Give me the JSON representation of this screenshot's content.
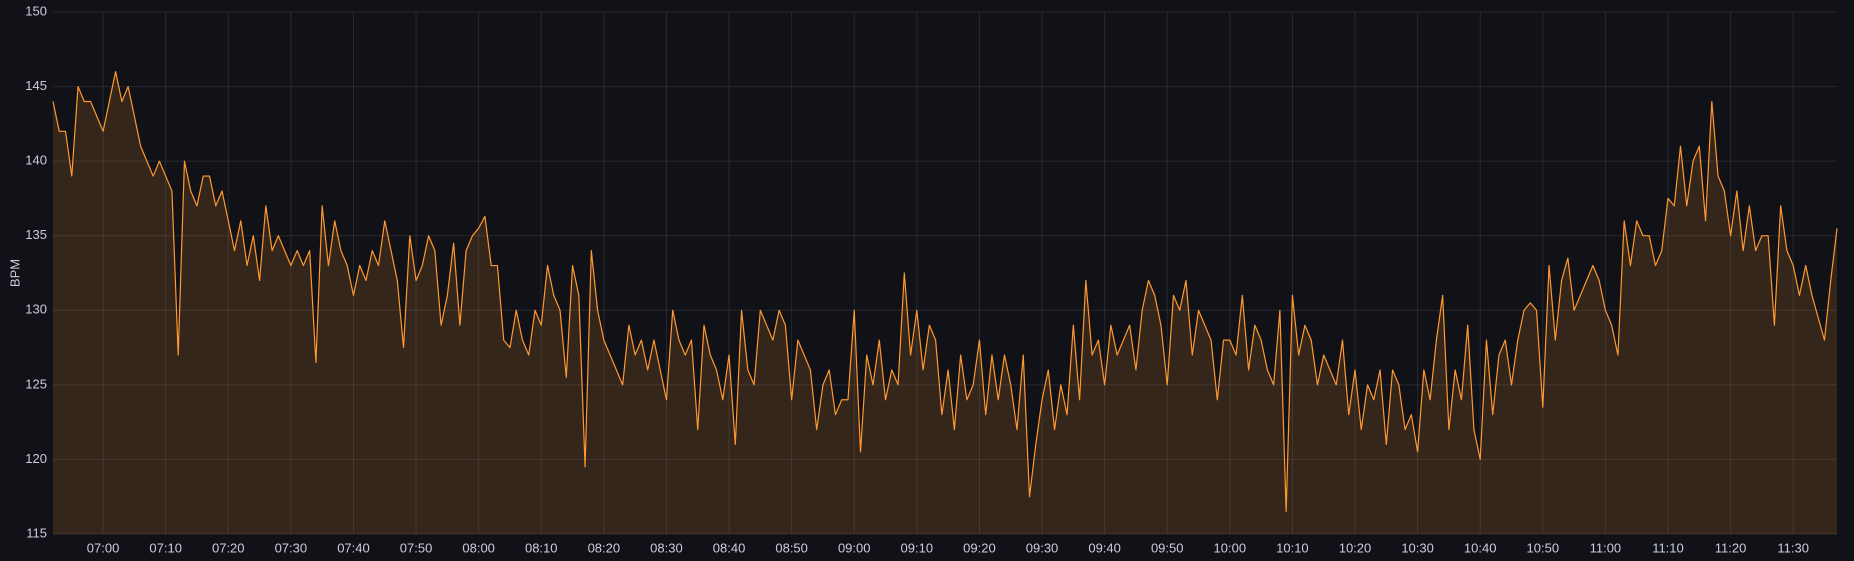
{
  "chart_data": {
    "type": "line",
    "ylabel": "BPM",
    "grid": true,
    "fill": true,
    "xlim": [
      "06:52",
      "11:37"
    ],
    "ylim": [
      115,
      150
    ],
    "xticks": [
      "07:00",
      "07:10",
      "07:20",
      "07:30",
      "07:40",
      "07:50",
      "08:00",
      "08:10",
      "08:20",
      "08:30",
      "08:40",
      "08:50",
      "09:00",
      "09:10",
      "09:20",
      "09:30",
      "09:40",
      "09:50",
      "10:00",
      "10:10",
      "10:20",
      "10:30",
      "10:40",
      "10:50",
      "11:00",
      "11:10",
      "11:20",
      "11:30"
    ],
    "yticks": [
      115,
      120,
      125,
      130,
      135,
      140,
      145,
      150
    ],
    "x": [
      "06:52",
      "06:53",
      "06:54",
      "06:55",
      "06:56",
      "06:57",
      "06:58",
      "06:59",
      "07:00",
      "07:01",
      "07:02",
      "07:03",
      "07:04",
      "07:05",
      "07:06",
      "07:07",
      "07:08",
      "07:09",
      "07:10",
      "07:11",
      "07:12",
      "07:13",
      "07:14",
      "07:15",
      "07:16",
      "07:17",
      "07:18",
      "07:19",
      "07:20",
      "07:21",
      "07:22",
      "07:23",
      "07:24",
      "07:25",
      "07:26",
      "07:27",
      "07:28",
      "07:29",
      "07:30",
      "07:31",
      "07:32",
      "07:33",
      "07:34",
      "07:35",
      "07:36",
      "07:37",
      "07:38",
      "07:39",
      "07:40",
      "07:41",
      "07:42",
      "07:43",
      "07:44",
      "07:45",
      "07:46",
      "07:47",
      "07:48",
      "07:49",
      "07:50",
      "07:51",
      "07:52",
      "07:53",
      "07:54",
      "07:55",
      "07:56",
      "07:57",
      "07:58",
      "07:59",
      "08:00",
      "08:01",
      "08:02",
      "08:03",
      "08:04",
      "08:05",
      "08:06",
      "08:07",
      "08:08",
      "08:09",
      "08:10",
      "08:11",
      "08:12",
      "08:13",
      "08:14",
      "08:15",
      "08:16",
      "08:17",
      "08:18",
      "08:19",
      "08:20",
      "08:21",
      "08:22",
      "08:23",
      "08:24",
      "08:25",
      "08:26",
      "08:27",
      "08:28",
      "08:29",
      "08:30",
      "08:31",
      "08:32",
      "08:33",
      "08:34",
      "08:35",
      "08:36",
      "08:37",
      "08:38",
      "08:39",
      "08:40",
      "08:41",
      "08:42",
      "08:43",
      "08:44",
      "08:45",
      "08:46",
      "08:47",
      "08:48",
      "08:49",
      "08:50",
      "08:51",
      "08:52",
      "08:53",
      "08:54",
      "08:55",
      "08:56",
      "08:57",
      "08:58",
      "08:59",
      "09:00",
      "09:01",
      "09:02",
      "09:03",
      "09:04",
      "09:05",
      "09:06",
      "09:07",
      "09:08",
      "09:09",
      "09:10",
      "09:11",
      "09:12",
      "09:13",
      "09:14",
      "09:15",
      "09:16",
      "09:17",
      "09:18",
      "09:19",
      "09:20",
      "09:21",
      "09:22",
      "09:23",
      "09:24",
      "09:25",
      "09:26",
      "09:27",
      "09:28",
      "09:29",
      "09:30",
      "09:31",
      "09:32",
      "09:33",
      "09:34",
      "09:35",
      "09:36",
      "09:37",
      "09:38",
      "09:39",
      "09:40",
      "09:41",
      "09:42",
      "09:43",
      "09:44",
      "09:45",
      "09:46",
      "09:47",
      "09:48",
      "09:49",
      "09:50",
      "09:51",
      "09:52",
      "09:53",
      "09:54",
      "09:55",
      "09:56",
      "09:57",
      "09:58",
      "09:59",
      "10:00",
      "10:01",
      "10:02",
      "10:03",
      "10:04",
      "10:05",
      "10:06",
      "10:07",
      "10:08",
      "10:09",
      "10:10",
      "10:11",
      "10:12",
      "10:13",
      "10:14",
      "10:15",
      "10:16",
      "10:17",
      "10:18",
      "10:19",
      "10:20",
      "10:21",
      "10:22",
      "10:23",
      "10:24",
      "10:25",
      "10:26",
      "10:27",
      "10:28",
      "10:29",
      "10:30",
      "10:31",
      "10:32",
      "10:33",
      "10:34",
      "10:35",
      "10:36",
      "10:37",
      "10:38",
      "10:39",
      "10:40",
      "10:41",
      "10:42",
      "10:43",
      "10:44",
      "10:45",
      "10:46",
      "10:47",
      "10:48",
      "10:49",
      "10:50",
      "10:51",
      "10:52",
      "10:53",
      "10:54",
      "10:55",
      "10:56",
      "10:57",
      "10:58",
      "10:59",
      "11:00",
      "11:01",
      "11:02",
      "11:03",
      "11:04",
      "11:05",
      "11:06",
      "11:07",
      "11:08",
      "11:09",
      "11:10",
      "11:11",
      "11:12",
      "11:13",
      "11:14",
      "11:15",
      "11:16",
      "11:17",
      "11:18",
      "11:19",
      "11:20",
      "11:21",
      "11:22",
      "11:23",
      "11:24",
      "11:25",
      "11:26",
      "11:27",
      "11:28",
      "11:29",
      "11:30",
      "11:31",
      "11:32",
      "11:33",
      "11:34",
      "11:35",
      "11:36",
      "11:37"
    ],
    "series": [
      {
        "color": "#ff9830",
        "values": [
          144,
          142,
          142,
          139,
          145,
          144,
          144,
          143,
          142,
          144,
          146,
          144,
          145,
          143,
          141,
          140,
          139,
          140,
          139,
          138,
          127,
          140,
          138,
          137,
          139,
          139,
          137,
          138,
          136,
          134,
          136,
          133,
          135,
          132,
          137,
          134,
          135,
          134,
          133,
          134,
          133,
          134,
          126.5,
          137,
          133,
          136,
          134,
          133,
          131,
          133,
          132,
          134,
          133,
          136,
          134,
          132,
          127.5,
          135,
          132,
          133,
          135,
          134,
          129,
          131,
          134.5,
          129,
          134,
          135,
          135.5,
          136.3,
          133,
          133,
          128,
          127.5,
          130,
          128,
          127,
          130,
          129,
          133,
          131,
          130,
          125.5,
          133,
          131,
          119.5,
          134,
          130,
          128,
          127,
          126,
          125,
          129,
          127,
          128,
          126,
          128,
          126,
          124,
          130,
          128,
          127,
          128,
          122,
          129,
          127,
          126,
          124,
          127,
          121,
          130,
          126,
          125,
          130,
          129,
          128,
          130,
          129,
          124,
          128,
          127,
          126,
          122,
          125,
          126,
          123,
          124,
          124,
          130,
          120.5,
          127,
          125,
          128,
          124,
          126,
          125,
          132.5,
          127,
          130,
          126,
          129,
          128,
          123,
          126,
          122,
          127,
          124,
          125,
          128,
          123,
          127,
          124,
          127,
          125,
          122,
          127,
          117.5,
          121,
          124,
          126,
          122,
          125,
          123,
          129,
          124,
          132,
          127,
          128,
          125,
          129,
          127,
          128,
          129,
          126,
          130,
          132,
          131,
          129,
          125,
          131,
          130,
          132,
          127,
          130,
          129,
          128,
          124,
          128,
          128,
          127,
          131,
          126,
          129,
          128,
          126,
          125,
          130,
          116.5,
          131,
          127,
          129,
          128,
          125,
          127,
          126,
          125,
          128,
          123,
          126,
          122,
          125,
          124,
          126,
          121,
          126,
          125,
          122,
          123,
          120.5,
          126,
          124,
          128,
          131,
          122,
          126,
          124,
          129,
          122,
          120,
          128,
          123,
          127,
          128,
          125,
          128,
          130,
          130.5,
          130,
          123.5,
          133,
          128,
          132,
          133.5,
          130,
          131,
          132,
          133,
          132,
          130,
          129,
          127,
          136,
          133,
          136,
          135,
          135,
          133,
          134,
          137.5,
          137,
          141,
          137,
          140,
          141,
          136,
          144,
          139,
          138,
          135,
          138,
          134,
          137,
          134,
          135,
          135,
          129,
          137,
          134,
          133,
          131,
          133,
          131,
          129.5,
          128,
          132,
          135.5
        ]
      }
    ]
  }
}
